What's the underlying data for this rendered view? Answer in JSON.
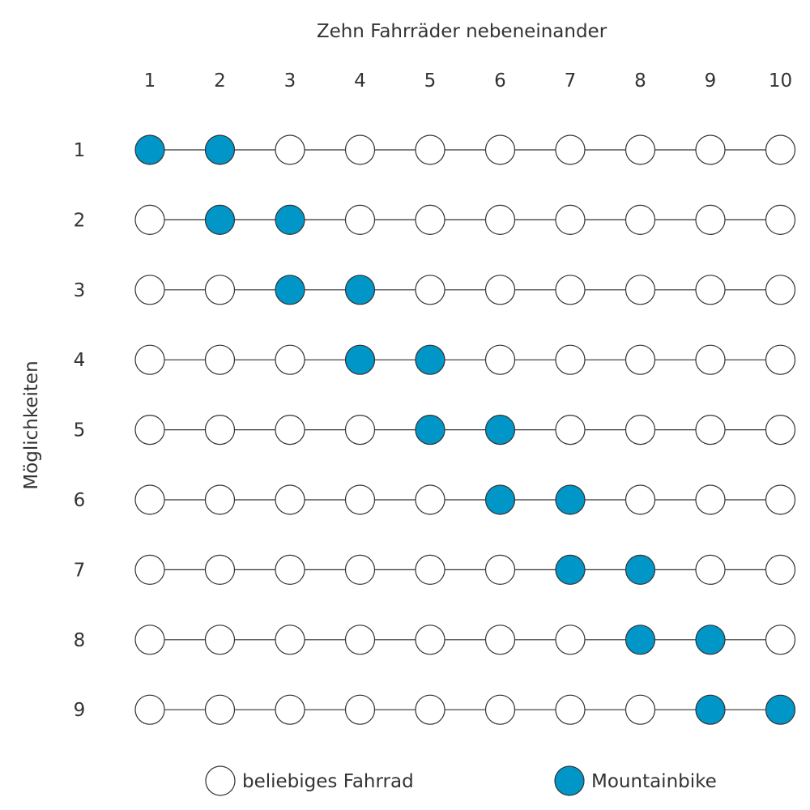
{
  "title": "Zehn Fahrräder nebeneinander",
  "y_axis_label": "Möglichkeiten",
  "column_labels": [
    "1",
    "2",
    "3",
    "4",
    "5",
    "6",
    "7",
    "8",
    "9",
    "10"
  ],
  "row_labels": [
    "1",
    "2",
    "3",
    "4",
    "5",
    "6",
    "7",
    "8",
    "9"
  ],
  "rows": [
    [
      1,
      1,
      0,
      0,
      0,
      0,
      0,
      0,
      0,
      0
    ],
    [
      0,
      1,
      1,
      0,
      0,
      0,
      0,
      0,
      0,
      0
    ],
    [
      0,
      0,
      1,
      1,
      0,
      0,
      0,
      0,
      0,
      0
    ],
    [
      0,
      0,
      0,
      1,
      1,
      0,
      0,
      0,
      0,
      0
    ],
    [
      0,
      0,
      0,
      0,
      1,
      1,
      0,
      0,
      0,
      0
    ],
    [
      0,
      0,
      0,
      0,
      0,
      1,
      1,
      0,
      0,
      0
    ],
    [
      0,
      0,
      0,
      0,
      0,
      0,
      1,
      1,
      0,
      0
    ],
    [
      0,
      0,
      0,
      0,
      0,
      0,
      0,
      1,
      1,
      0
    ],
    [
      0,
      0,
      0,
      0,
      0,
      0,
      0,
      0,
      1,
      1
    ]
  ],
  "legend": {
    "any_bike": "beliebiges Fahrrad",
    "mountainbike": "Mountainbike"
  },
  "colors": {
    "mountainbike": "#0096c8",
    "any_bike": "#ffffff",
    "stroke": "#333333",
    "text": "#333333"
  }
}
